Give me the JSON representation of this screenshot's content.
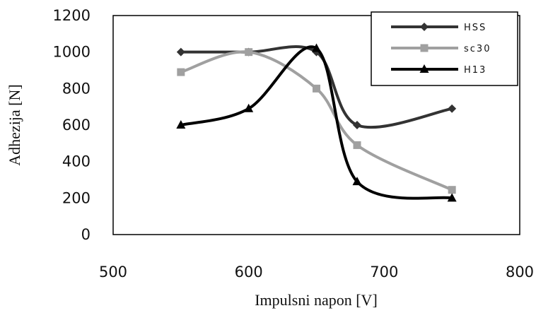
{
  "chart_data": {
    "type": "line",
    "xlabel": "Impulsni napon [V]",
    "ylabel": "Adhezija [N]",
    "xlim": [
      500,
      800
    ],
    "ylim": [
      0,
      1200
    ],
    "x_ticks": [
      "500",
      "600",
      "700",
      "800"
    ],
    "y_ticks": [
      "0",
      "200",
      "400",
      "600",
      "800",
      "1000",
      "1200"
    ],
    "grid": false,
    "legend_position": "top-right",
    "series": [
      {
        "name": "HSS",
        "color": "#333333",
        "marker": "diamond",
        "x": [
          550,
          600,
          650,
          680,
          750
        ],
        "y": [
          1000,
          1000,
          1000,
          600,
          690
        ]
      },
      {
        "name": "sc30",
        "color": "#a0a0a0",
        "marker": "square",
        "x": [
          550,
          600,
          650,
          680,
          750
        ],
        "y": [
          890,
          1000,
          800,
          490,
          245
        ]
      },
      {
        "name": "H13",
        "color": "#000000",
        "marker": "triangle",
        "x": [
          550,
          600,
          650,
          680,
          750
        ],
        "y": [
          600,
          690,
          1020,
          290,
          200
        ]
      }
    ]
  }
}
